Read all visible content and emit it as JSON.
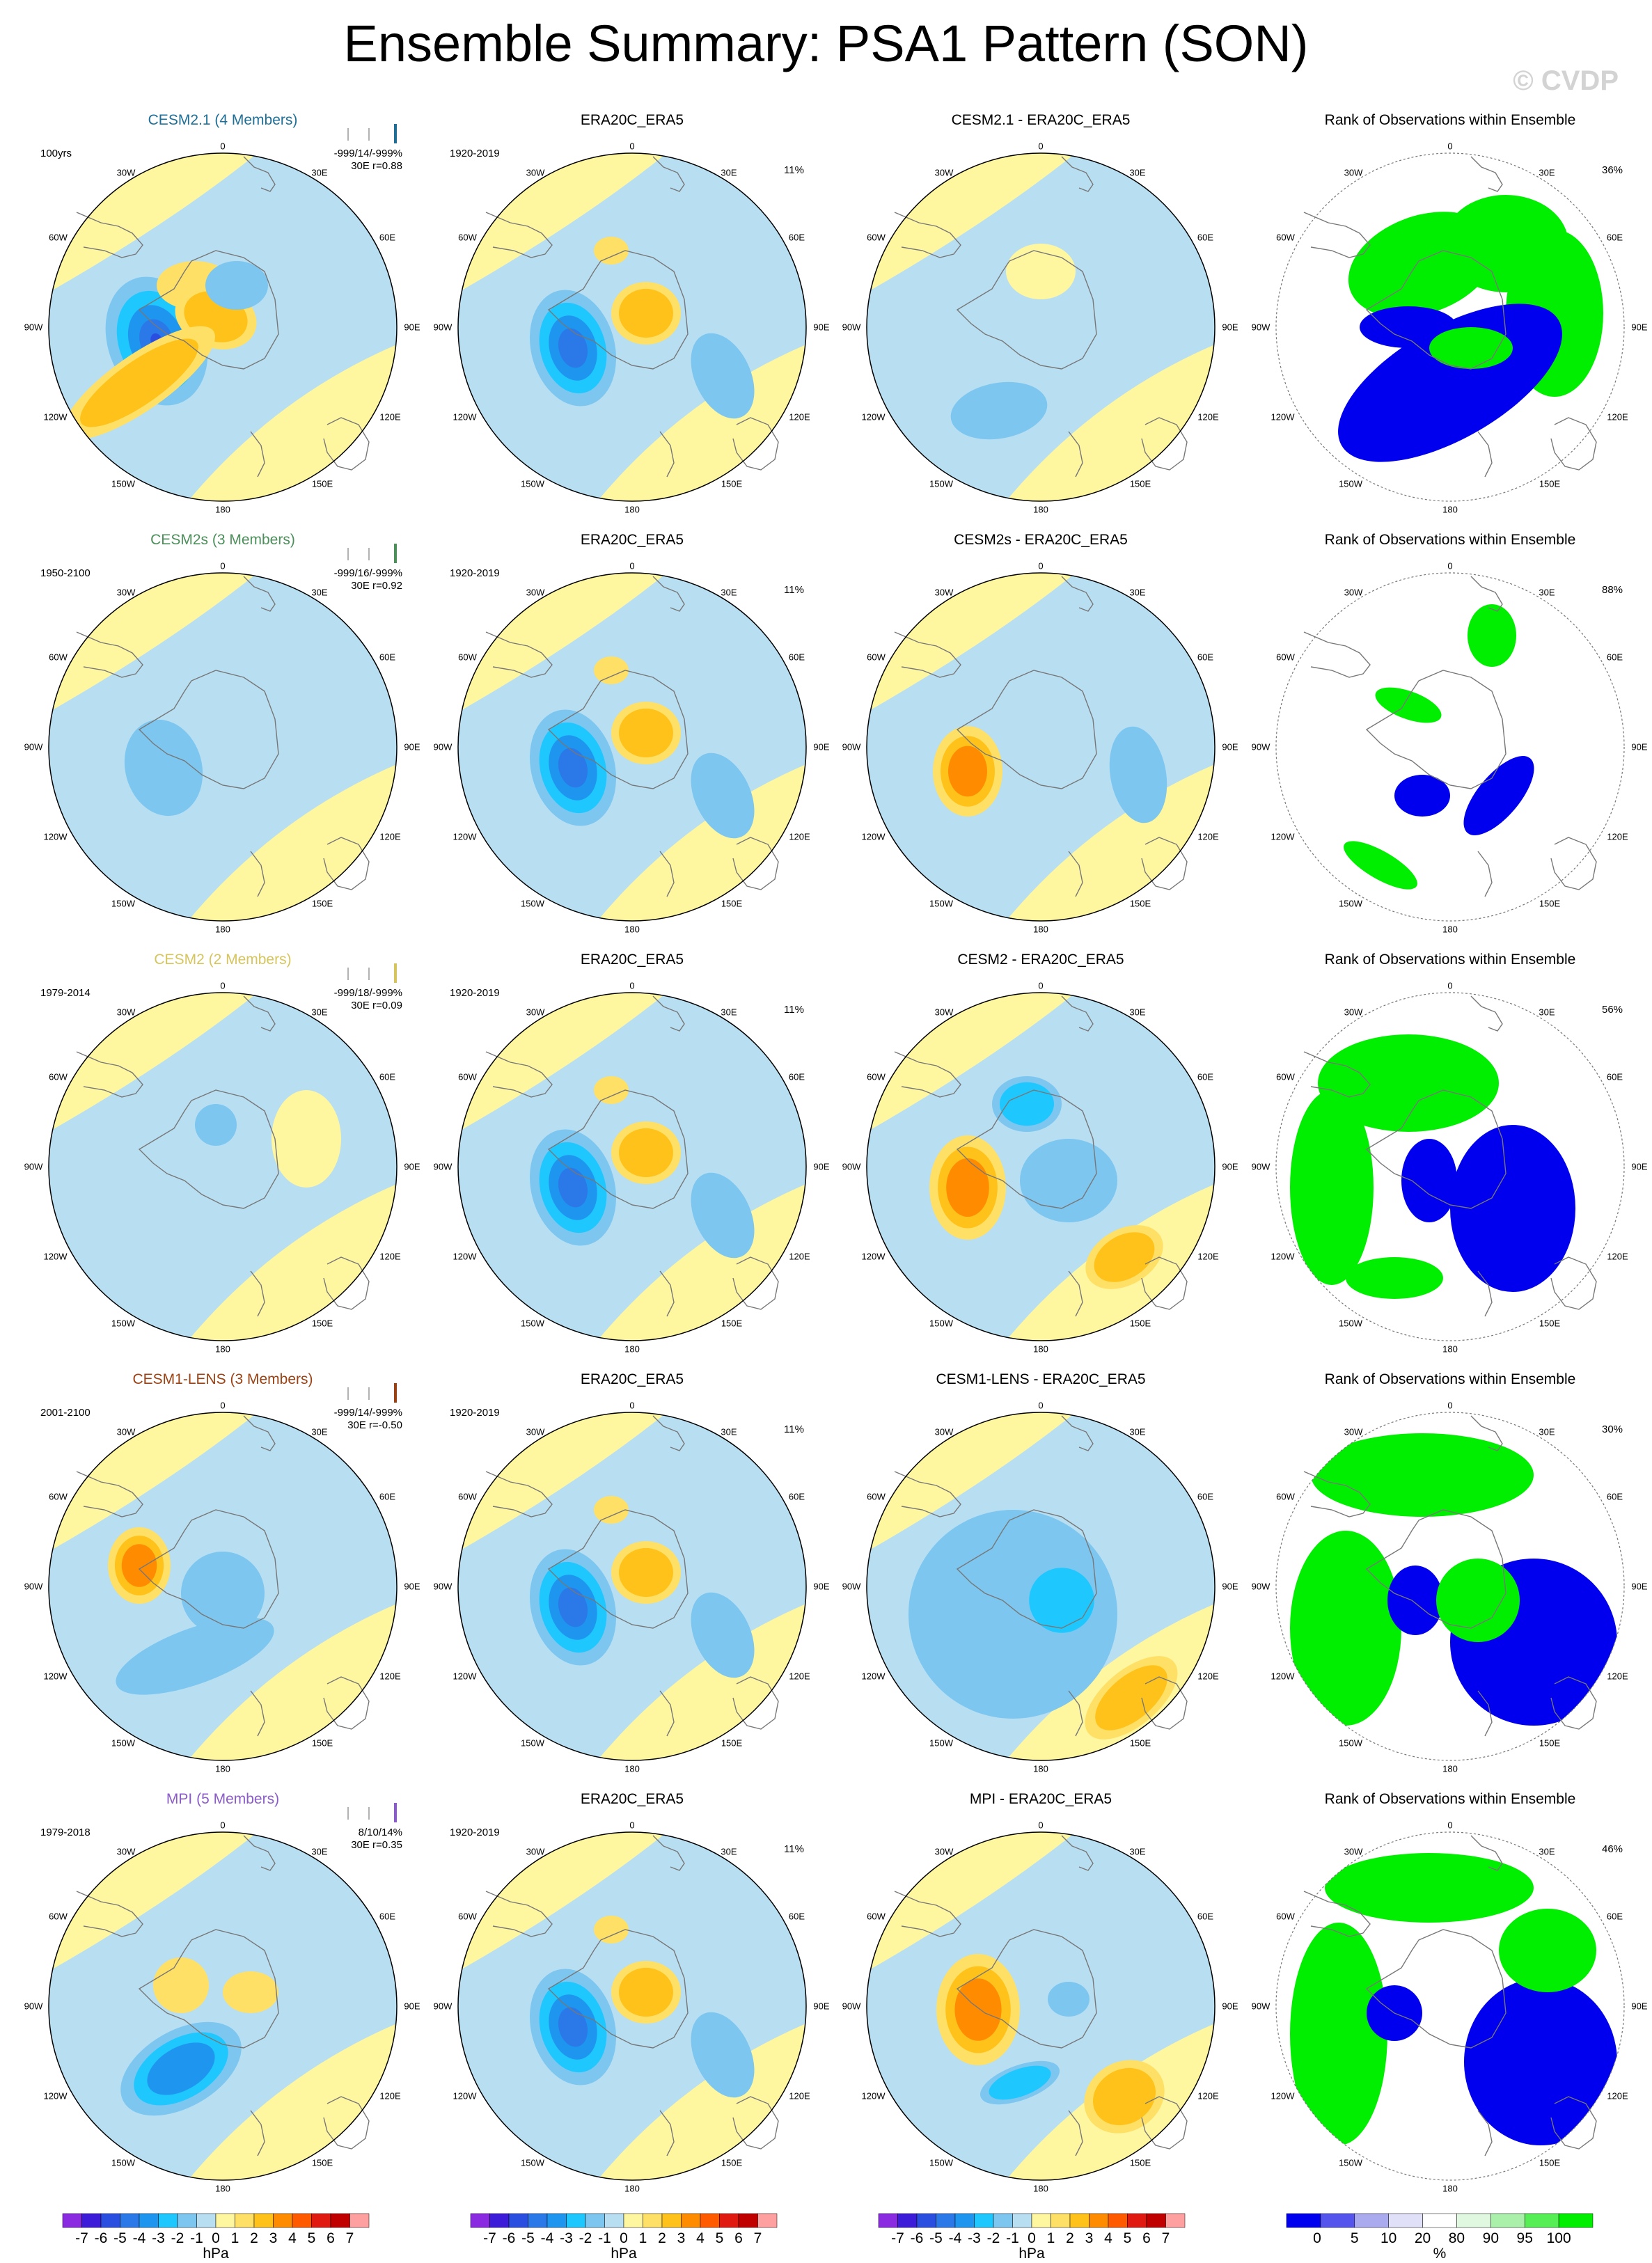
{
  "title": "Ensemble Summary: PSA1 Pattern (SON)",
  "watermark": "© CVDP",
  "map_labels": {
    "top": "0",
    "bottom": "180",
    "left": "90W",
    "right": "90E",
    "ul": "30W",
    "ur": "30E",
    "ul2": "60W",
    "ur2": "60E",
    "ll": "120W",
    "lr": "120E",
    "ll2": "150W",
    "lr2": "150E"
  },
  "obs_title": "ERA20C_ERA5",
  "obs_years": "1920-2019",
  "obs_pct": "11%",
  "rank_title": "Rank of Observations within Ensemble",
  "rows": [
    {
      "model": "CESM2.1 (4 Members)",
      "model_color": "#1f6e96",
      "years": "100yrs",
      "stats1": "-999/14/-999%",
      "stats2": "30E r=0.88",
      "diff_title": "CESM2.1 - ERA20C_ERA5",
      "rank_pct": "36%"
    },
    {
      "model": "CESM2s (3 Members)",
      "model_color": "#4c8f5a",
      "years": "1950-2100",
      "stats1": "-999/16/-999%",
      "stats2": "30E r=0.92",
      "diff_title": "CESM2s - ERA20C_ERA5",
      "rank_pct": "88%"
    },
    {
      "model": "CESM2 (2 Members)",
      "model_color": "#d6c55c",
      "years": "1979-2014",
      "stats1": "-999/18/-999%",
      "stats2": "30E r=0.09",
      "diff_title": "CESM2 - ERA20C_ERA5",
      "rank_pct": "56%"
    },
    {
      "model": "CESM1-LENS (3 Members)",
      "model_color": "#9a4214",
      "years": "2001-2100",
      "stats1": "-999/14/-999%",
      "stats2": "30E r=-0.50",
      "diff_title": "CESM1-LENS - ERA20C_ERA5",
      "rank_pct": "30%"
    },
    {
      "model": "MPI (5 Members)",
      "model_color": "#8a5cc8",
      "years": "1979-2018",
      "stats1": "8/10/14%",
      "stats2": "30E r=0.35",
      "diff_title": "MPI - ERA20C_ERA5",
      "rank_pct": "46%"
    }
  ],
  "colorbar": {
    "labels": [
      "-7",
      "-6",
      "-5",
      "-4",
      "-3",
      "-2",
      "-1",
      "0",
      "1",
      "2",
      "3",
      "4",
      "5",
      "6",
      "7"
    ],
    "colors": [
      "#8a2be2",
      "#3c1cd8",
      "#2a4fe0",
      "#2b79e8",
      "#1e96f0",
      "#1ec8ff",
      "#7cc6f0",
      "#b8def2",
      "#fff6a0",
      "#ffe066",
      "#ffc21a",
      "#ff8c00",
      "#ff5a00",
      "#e01a10",
      "#c00000",
      "#ffa0a0"
    ],
    "unit": "hPa"
  },
  "rank_colorbar": {
    "labels": [
      "0",
      "5",
      "10",
      "20",
      "80",
      "90",
      "95",
      "100"
    ],
    "colors": [
      "#0000ee",
      "#5555ee",
      "#aaaaee",
      "#e0e0f8",
      "#ffffff",
      "#e0f8e0",
      "#aaf0aa",
      "#55ee55",
      "#00ee00"
    ],
    "unit": "%"
  },
  "colors": {
    "land": "#888888",
    "ocean_bg": "#b8def2",
    "neutral": "#fff6a0"
  }
}
